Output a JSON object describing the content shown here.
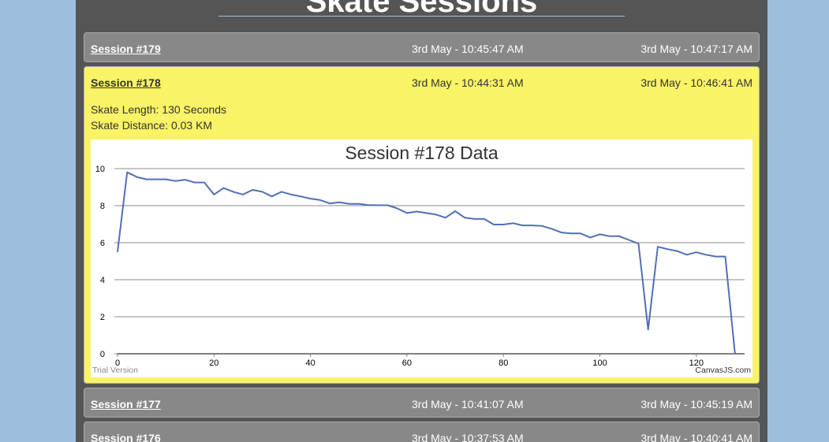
{
  "page": {
    "title": "Skate Sessions"
  },
  "sessions": [
    {
      "name": "Session #179",
      "start": "3rd May - 10:45:47 AM",
      "end": "3rd May - 10:47:17 AM"
    },
    {
      "name": "Session #178",
      "start": "3rd May - 10:44:31 AM",
      "end": "3rd May - 10:46:41 AM"
    },
    {
      "name": "Session #177",
      "start": "3rd May - 10:41:07 AM",
      "end": "3rd May - 10:45:19 AM"
    },
    {
      "name": "Session #176",
      "start": "3rd May - 10:37:53 AM",
      "end": "3rd May - 10:40:41 AM"
    }
  ],
  "expanded": {
    "length_text": "Skate Length: 130 Seconds",
    "distance_text": "Skate Distance: 0.03 KM"
  },
  "chart_data": {
    "type": "line",
    "title": "Session #178 Data",
    "xlabel": "",
    "ylabel": "",
    "xlim": [
      0,
      130
    ],
    "ylim": [
      0,
      10
    ],
    "x_ticks": [
      0,
      20,
      40,
      60,
      80,
      100,
      120
    ],
    "y_ticks": [
      0,
      2,
      4,
      6,
      8,
      10
    ],
    "grid": true,
    "line_color": "#4f6fb7",
    "credit_left": "Trial Version",
    "credit_right": "CanvasJS.com",
    "series": [
      {
        "x": [
          0,
          2,
          4,
          6,
          8,
          10,
          12,
          14,
          16,
          18,
          20,
          22,
          24,
          26,
          28,
          30,
          32,
          34,
          36,
          38,
          40,
          42,
          44,
          46,
          48,
          50,
          52,
          54,
          56,
          58,
          60,
          62,
          64,
          66,
          68,
          70,
          72,
          74,
          76,
          78,
          80,
          82,
          84,
          86,
          88,
          90,
          92,
          94,
          96,
          98,
          100,
          102,
          104,
          106,
          108,
          110,
          112,
          114,
          116,
          118,
          120,
          122,
          124,
          126,
          128
        ],
        "values": [
          5.5,
          9.8,
          9.55,
          9.42,
          9.42,
          9.42,
          9.33,
          9.4,
          9.25,
          9.25,
          8.6,
          8.95,
          8.75,
          8.6,
          8.85,
          8.75,
          8.5,
          8.75,
          8.6,
          8.5,
          8.38,
          8.3,
          8.12,
          8.18,
          8.1,
          8.1,
          8.03,
          8.02,
          8.02,
          7.85,
          7.6,
          7.68,
          7.6,
          7.52,
          7.35,
          7.7,
          7.35,
          7.28,
          7.28,
          6.98,
          6.98,
          7.05,
          6.93,
          6.93,
          6.9,
          6.75,
          6.55,
          6.5,
          6.5,
          6.28,
          6.45,
          6.35,
          6.35,
          6.15,
          5.95,
          1.3,
          5.78,
          5.65,
          5.55,
          5.35,
          5.48,
          5.35,
          5.25,
          5.25,
          0
        ]
      }
    ]
  }
}
